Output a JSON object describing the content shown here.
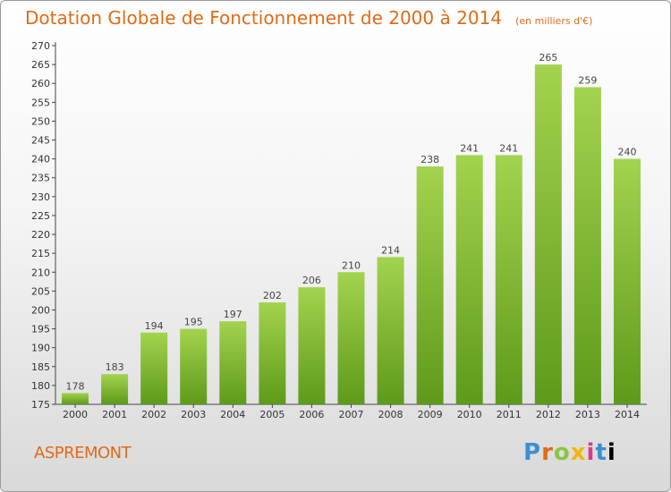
{
  "header": {
    "title": "Dotation Globale de Fonctionnement de 2000 à 2014",
    "unit": "(en milliers d'€)"
  },
  "footer": {
    "place": "ASPREMONT",
    "logo": "Proxiti"
  },
  "colors": {
    "accent": "#e06b17",
    "bar_light": "#a3d34f",
    "bar_dark": "#5e9a1a"
  },
  "chart_data": {
    "type": "bar",
    "title": "Dotation Globale de Fonctionnement de 2000 à 2014",
    "subtitle": "(en milliers d'€)",
    "xlabel": "",
    "ylabel": "",
    "categories": [
      "2000",
      "2001",
      "2002",
      "2003",
      "2004",
      "2005",
      "2006",
      "2007",
      "2008",
      "2009",
      "2010",
      "2011",
      "2012",
      "2013",
      "2014"
    ],
    "values": [
      178,
      183,
      194,
      195,
      197,
      202,
      206,
      210,
      214,
      238,
      241,
      241,
      265,
      259,
      240
    ],
    "ylim": [
      175,
      270
    ],
    "yticks": [
      175,
      180,
      185,
      190,
      195,
      200,
      205,
      210,
      215,
      220,
      225,
      230,
      235,
      240,
      245,
      250,
      255,
      260,
      265,
      270
    ],
    "grid": false,
    "legend": "none"
  }
}
